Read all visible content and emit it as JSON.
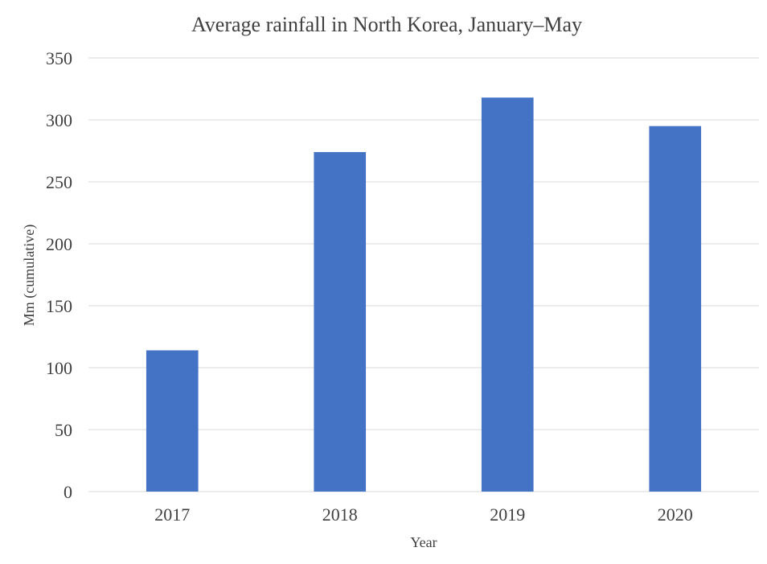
{
  "chart_data": {
    "type": "bar",
    "title": "Average rainfall in North Korea, January–May",
    "xlabel": "Year",
    "ylabel": "Mm (cumulative)",
    "categories": [
      "2017",
      "2018",
      "2019",
      "2020"
    ],
    "values": [
      114,
      274,
      318,
      295
    ],
    "ylim": [
      0,
      350
    ],
    "yticks": [
      0,
      50,
      100,
      150,
      200,
      250,
      300,
      350
    ],
    "grid": true,
    "legend": "none",
    "bar_color": "#4472C4"
  }
}
